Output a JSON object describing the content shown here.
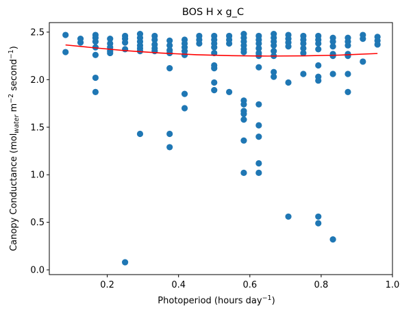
{
  "chart_data": {
    "type": "scatter",
    "title": "BOS H x g_C",
    "xlabel": {
      "main": "Photoperiod (hours day",
      "sup": "−1",
      "end": ")"
    },
    "ylabel": {
      "p1": "Canopy Conductance (mol",
      "sub": "water",
      "p2": " m",
      "sup1": "−2",
      "p3": " second",
      "sup2": "−1",
      "p4": ")"
    },
    "xlim": [
      0.0375,
      1.0
    ],
    "ylim": [
      -0.05,
      2.6
    ],
    "xticks": [
      {
        "value": 0.2,
        "label": "0.2"
      },
      {
        "value": 0.4,
        "label": "0.4"
      },
      {
        "value": 0.6,
        "label": "0.6"
      },
      {
        "value": 0.8,
        "label": "0.8"
      },
      {
        "value": 1.0,
        "label": "1.0"
      }
    ],
    "yticks": [
      {
        "value": 0.0,
        "label": "0.0"
      },
      {
        "value": 0.5,
        "label": "0.5"
      },
      {
        "value": 1.0,
        "label": "1.0"
      },
      {
        "value": 1.5,
        "label": "1.5"
      },
      {
        "value": 2.0,
        "label": "2.0"
      },
      {
        "value": 2.5,
        "label": "2.5"
      }
    ],
    "grid": false,
    "legend": "none",
    "colors": {
      "points": "#1f77b4",
      "fit": "#ff0000",
      "axes": "#000000"
    },
    "series": [
      {
        "kind": "scatter",
        "points": [
          [
            0.083,
            2.47
          ],
          [
            0.083,
            2.29
          ],
          [
            0.125,
            2.43
          ],
          [
            0.125,
            2.39
          ],
          [
            0.167,
            2.47
          ],
          [
            0.167,
            2.44
          ],
          [
            0.167,
            2.4
          ],
          [
            0.167,
            2.34
          ],
          [
            0.167,
            2.26
          ],
          [
            0.167,
            2.02
          ],
          [
            0.167,
            1.87
          ],
          [
            0.208,
            2.43
          ],
          [
            0.208,
            2.38
          ],
          [
            0.208,
            2.34
          ],
          [
            0.208,
            2.3
          ],
          [
            0.208,
            2.28
          ],
          [
            0.25,
            2.46
          ],
          [
            0.25,
            2.43
          ],
          [
            0.25,
            2.39
          ],
          [
            0.25,
            2.32
          ],
          [
            0.25,
            0.08
          ],
          [
            0.292,
            2.48
          ],
          [
            0.292,
            2.44
          ],
          [
            0.292,
            2.4
          ],
          [
            0.292,
            2.36
          ],
          [
            0.292,
            2.33
          ],
          [
            0.292,
            2.3
          ],
          [
            0.292,
            1.43
          ],
          [
            0.333,
            2.46
          ],
          [
            0.333,
            2.42
          ],
          [
            0.333,
            2.37
          ],
          [
            0.333,
            2.33
          ],
          [
            0.333,
            2.3
          ],
          [
            0.375,
            2.41
          ],
          [
            0.375,
            2.36
          ],
          [
            0.375,
            2.31
          ],
          [
            0.375,
            2.28
          ],
          [
            0.375,
            2.12
          ],
          [
            0.375,
            1.43
          ],
          [
            0.375,
            1.29
          ],
          [
            0.417,
            2.42
          ],
          [
            0.417,
            2.38
          ],
          [
            0.417,
            2.34
          ],
          [
            0.417,
            2.3
          ],
          [
            0.417,
            2.26
          ],
          [
            0.417,
            1.85
          ],
          [
            0.417,
            1.7
          ],
          [
            0.458,
            2.46
          ],
          [
            0.458,
            2.42
          ],
          [
            0.458,
            2.38
          ],
          [
            0.5,
            2.46
          ],
          [
            0.5,
            2.42
          ],
          [
            0.5,
            2.38
          ],
          [
            0.5,
            2.34
          ],
          [
            0.5,
            2.28
          ],
          [
            0.5,
            2.15
          ],
          [
            0.5,
            2.12
          ],
          [
            0.5,
            1.97
          ],
          [
            0.5,
            1.89
          ],
          [
            0.542,
            2.46
          ],
          [
            0.542,
            2.42
          ],
          [
            0.542,
            2.38
          ],
          [
            0.542,
            1.87
          ],
          [
            0.583,
            2.48
          ],
          [
            0.583,
            2.44
          ],
          [
            0.583,
            2.4
          ],
          [
            0.583,
            2.36
          ],
          [
            0.583,
            2.32
          ],
          [
            0.583,
            2.29
          ],
          [
            0.583,
            1.78
          ],
          [
            0.583,
            1.74
          ],
          [
            0.583,
            1.67
          ],
          [
            0.583,
            1.64
          ],
          [
            0.583,
            1.58
          ],
          [
            0.583,
            1.36
          ],
          [
            0.583,
            1.02
          ],
          [
            0.625,
            2.46
          ],
          [
            0.625,
            2.42
          ],
          [
            0.625,
            2.38
          ],
          [
            0.625,
            2.33
          ],
          [
            0.625,
            2.28
          ],
          [
            0.625,
            2.25
          ],
          [
            0.625,
            2.13
          ],
          [
            0.625,
            1.74
          ],
          [
            0.625,
            1.52
          ],
          [
            0.625,
            1.4
          ],
          [
            0.625,
            1.12
          ],
          [
            0.625,
            1.02
          ],
          [
            0.667,
            2.48
          ],
          [
            0.667,
            2.44
          ],
          [
            0.667,
            2.4
          ],
          [
            0.667,
            2.36
          ],
          [
            0.667,
            2.3
          ],
          [
            0.667,
            2.25
          ],
          [
            0.667,
            2.08
          ],
          [
            0.667,
            2.03
          ],
          [
            0.708,
            2.47
          ],
          [
            0.708,
            2.43
          ],
          [
            0.708,
            2.39
          ],
          [
            0.708,
            2.35
          ],
          [
            0.708,
            1.97
          ],
          [
            0.708,
            0.56
          ],
          [
            0.75,
            2.46
          ],
          [
            0.75,
            2.42
          ],
          [
            0.75,
            2.38
          ],
          [
            0.75,
            2.33
          ],
          [
            0.75,
            2.28
          ],
          [
            0.75,
            2.06
          ],
          [
            0.792,
            2.46
          ],
          [
            0.792,
            2.42
          ],
          [
            0.792,
            2.38
          ],
          [
            0.792,
            2.32
          ],
          [
            0.792,
            2.15
          ],
          [
            0.792,
            2.03
          ],
          [
            0.792,
            1.99
          ],
          [
            0.792,
            0.56
          ],
          [
            0.792,
            0.49
          ],
          [
            0.833,
            2.44
          ],
          [
            0.833,
            2.4
          ],
          [
            0.833,
            2.35
          ],
          [
            0.833,
            2.27
          ],
          [
            0.833,
            2.25
          ],
          [
            0.833,
            2.06
          ],
          [
            0.833,
            0.32
          ],
          [
            0.875,
            2.44
          ],
          [
            0.875,
            2.4
          ],
          [
            0.875,
            2.36
          ],
          [
            0.875,
            2.27
          ],
          [
            0.875,
            2.25
          ],
          [
            0.875,
            2.06
          ],
          [
            0.875,
            1.87
          ],
          [
            0.917,
            2.47
          ],
          [
            0.917,
            2.43
          ],
          [
            0.917,
            2.19
          ],
          [
            0.958,
            2.45
          ],
          [
            0.958,
            2.41
          ],
          [
            0.958,
            2.37
          ]
        ]
      },
      {
        "kind": "line",
        "points": [
          [
            0.083,
            2.365
          ],
          [
            0.15,
            2.34
          ],
          [
            0.25,
            2.305
          ],
          [
            0.35,
            2.28
          ],
          [
            0.45,
            2.262
          ],
          [
            0.55,
            2.252
          ],
          [
            0.65,
            2.248
          ],
          [
            0.75,
            2.25
          ],
          [
            0.85,
            2.258
          ],
          [
            0.958,
            2.275
          ]
        ]
      }
    ]
  }
}
